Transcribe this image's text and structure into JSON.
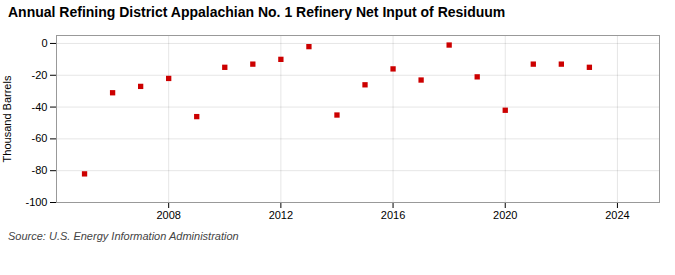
{
  "chart_data": {
    "type": "scatter",
    "title": "Annual Refining District Appalachian No. 1 Refinery Net Input of Residuum",
    "ylabel": "Thousand Barrels",
    "annotations": [
      "Source: U.S. Energy Information Administration"
    ],
    "x": [
      2005,
      2006,
      2007,
      2008,
      2009,
      2010,
      2011,
      2012,
      2013,
      2014,
      2015,
      2016,
      2017,
      2018,
      2019,
      2020,
      2021,
      2022,
      2023
    ],
    "values": [
      -82,
      -31,
      -27,
      -22,
      -46,
      -15,
      -13,
      -10,
      -2,
      -45,
      -26,
      -16,
      -23,
      -1,
      -21,
      -42,
      -13,
      -13,
      -15
    ],
    "color": "#cc0000",
    "marker": "square",
    "grid": true,
    "xlim": [
      2004,
      2025.5
    ],
    "ylim": [
      -100,
      5
    ],
    "xticks": [
      2008,
      2012,
      2016,
      2020,
      2024
    ],
    "yticks": [
      0,
      -20,
      -40,
      -60,
      -80,
      -100
    ]
  }
}
